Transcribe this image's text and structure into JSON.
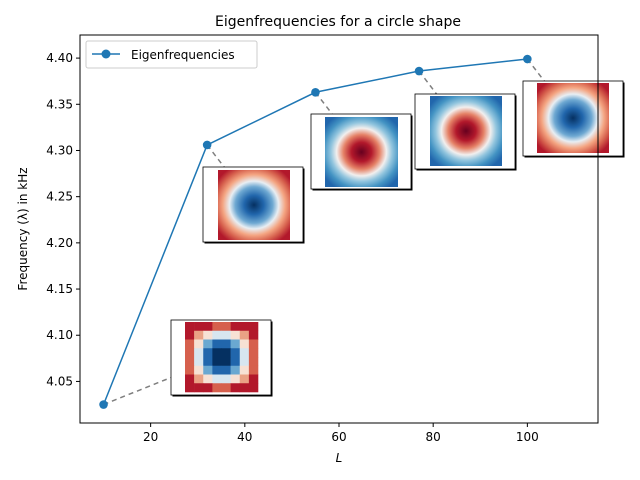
{
  "chart_data": {
    "type": "line",
    "title": "Eigenfrequencies for a circle shape",
    "xlabel": "L",
    "ylabel": "Frequency (λ) in kHz",
    "xlim": [
      5,
      115
    ],
    "ylim": [
      4.005,
      4.425
    ],
    "xticks": [
      20,
      40,
      60,
      80,
      100
    ],
    "yticks": [
      4.05,
      4.1,
      4.15,
      4.2,
      4.25,
      4.3,
      4.35,
      4.4
    ],
    "xtick_labels": [
      "20",
      "40",
      "60",
      "80",
      "100"
    ],
    "ytick_labels": [
      "4.05",
      "4.10",
      "4.15",
      "4.20",
      "4.25",
      "4.30",
      "4.35",
      "4.40"
    ],
    "legend": {
      "position": "upper left"
    },
    "grid": false,
    "series": [
      {
        "name": "Eigenfrequencies",
        "color": "#1f77b4",
        "x": [
          10,
          32,
          55,
          77,
          100
        ],
        "y": [
          4.025,
          4.306,
          4.363,
          4.386,
          4.399
        ]
      }
    ],
    "insets": [
      {
        "anchor_index": 0,
        "pattern": "mode-grid-low-res",
        "colormap": "RdBu"
      },
      {
        "anchor_index": 1,
        "pattern": "mode-blue-center",
        "colormap": "RdBu"
      },
      {
        "anchor_index": 2,
        "pattern": "mode-red-center",
        "colormap": "RdBu"
      },
      {
        "anchor_index": 3,
        "pattern": "mode-red-center",
        "colormap": "RdBu"
      },
      {
        "anchor_index": 4,
        "pattern": "mode-blue-center",
        "colormap": "RdBu"
      }
    ],
    "connector_color": "#7f7f7f"
  }
}
